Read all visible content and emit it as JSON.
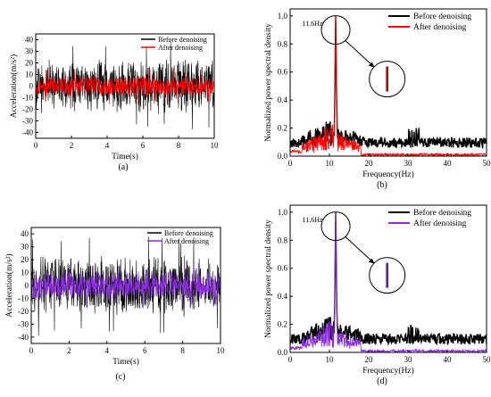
{
  "chart_data": [
    {
      "panel": "(a)",
      "type": "line",
      "xlabel": "Time(s)",
      "ylabel": "Acceleration(m/s²)",
      "xlim": [
        0,
        10
      ],
      "ylim": [
        -45,
        45
      ],
      "xticks": [
        0,
        2,
        4,
        6,
        8,
        10
      ],
      "yticks": [
        40,
        30,
        20,
        10,
        0,
        -10,
        -20,
        -30,
        -40
      ],
      "legend_position": "top-right",
      "series": [
        {
          "name": "Before denoising",
          "color": "#000000",
          "amplitude": 25,
          "peak": 40
        },
        {
          "name": "After denoising",
          "color": "#ff0000",
          "amplitude": 10,
          "peak": 16
        }
      ]
    },
    {
      "panel": "(b)",
      "type": "line",
      "xlabel": "Frequency(Hz)",
      "ylabel": "Normalized power spectral density",
      "xlim": [
        0,
        50
      ],
      "ylim": [
        0,
        1.05
      ],
      "xticks": [
        0,
        10,
        20,
        30,
        40,
        50
      ],
      "yticks": [
        "0.0",
        "0.2",
        "0.4",
        "0.6",
        "0.8",
        "1.0"
      ],
      "annotation": "11.6Hz",
      "peak_frequency": 11.6,
      "legend_position": "top-right",
      "series": [
        {
          "name": "Before denoising",
          "color": "#000000",
          "peak": 1.0,
          "floor": 0.06
        },
        {
          "name": "After denoising",
          "color": "#ff0000",
          "peak": 1.0,
          "floor": 0.02
        }
      ]
    },
    {
      "panel": "(c)",
      "type": "line",
      "xlabel": "Time(s)",
      "ylabel": "Acceleration(m/s²)",
      "xlim": [
        0,
        10
      ],
      "ylim": [
        -45,
        45
      ],
      "xticks": [
        0,
        2,
        4,
        6,
        8,
        10
      ],
      "yticks": [
        40,
        30,
        20,
        10,
        0,
        -10,
        -20,
        -30,
        -40
      ],
      "legend_position": "top-right",
      "series": [
        {
          "name": "Before denoising",
          "color": "#000000",
          "amplitude": 25,
          "peak": 40
        },
        {
          "name": "After denoising",
          "color": "#8a2be2",
          "amplitude": 12,
          "peak": 18
        }
      ]
    },
    {
      "panel": "(d)",
      "type": "line",
      "xlabel": "Frequency(Hz)",
      "ylabel": "Normalized power spectral density",
      "xlim": [
        0,
        50
      ],
      "ylim": [
        0,
        1.05
      ],
      "xticks": [
        0,
        10,
        20,
        30,
        40,
        50
      ],
      "yticks": [
        "0.0",
        "0.2",
        "0.4",
        "0.6",
        "0.8",
        "1.0"
      ],
      "annotation": "11.6Hz",
      "peak_frequency": 11.6,
      "legend_position": "top-right",
      "series": [
        {
          "name": "Before denoising",
          "color": "#000000",
          "peak": 1.0,
          "floor": 0.06
        },
        {
          "name": "After denoising",
          "color": "#8a2be2",
          "peak": 1.0,
          "floor": 0.02
        }
      ]
    }
  ]
}
